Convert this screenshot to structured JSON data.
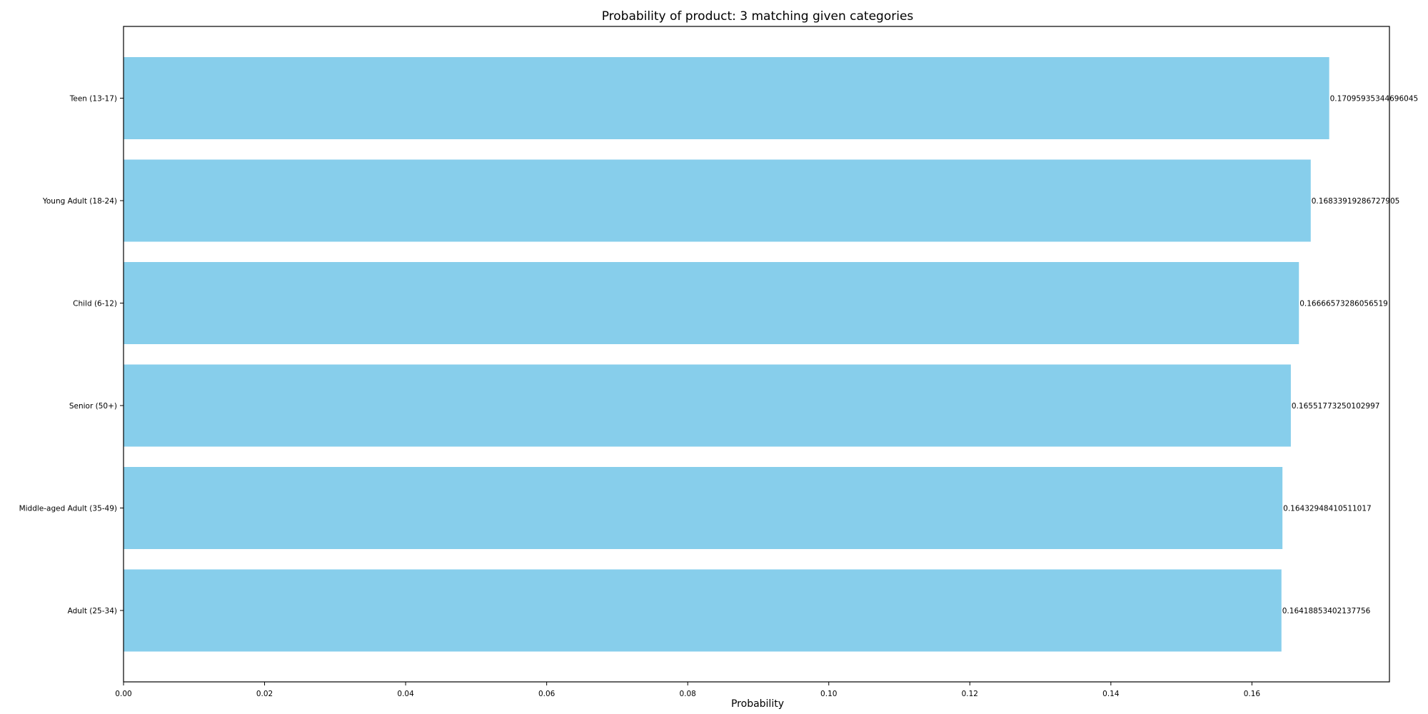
{
  "chart_data": {
    "type": "bar",
    "orientation": "horizontal",
    "title": "Probability of product: 3 matching given categories",
    "xlabel": "Probability",
    "ylabel": "",
    "categories": [
      "Adult (25-34)",
      "Middle-aged Adult (35-49)",
      "Senior (50+)",
      "Child (6-12)",
      "Young Adult (18-24)",
      "Teen (13-17)"
    ],
    "values": [
      0.16418853402137756,
      0.16432948410511017,
      0.16551773250102997,
      0.16666573286056519,
      0.16833919286727905,
      0.17095935344696045
    ],
    "data_labels": [
      "0.16418853402137756",
      "0.16432948410511017",
      "0.16551773250102997",
      "0.16666573286056519",
      "0.16833919286727905",
      "0.17095935344696045"
    ],
    "xticks": [
      "0.00",
      "0.02",
      "0.04",
      "0.06",
      "0.08",
      "0.10",
      "0.12",
      "0.14",
      "0.16"
    ],
    "xlim": [
      0,
      0.1795
    ],
    "bar_color": "#87CEEB",
    "grid": false,
    "legend": "none"
  }
}
